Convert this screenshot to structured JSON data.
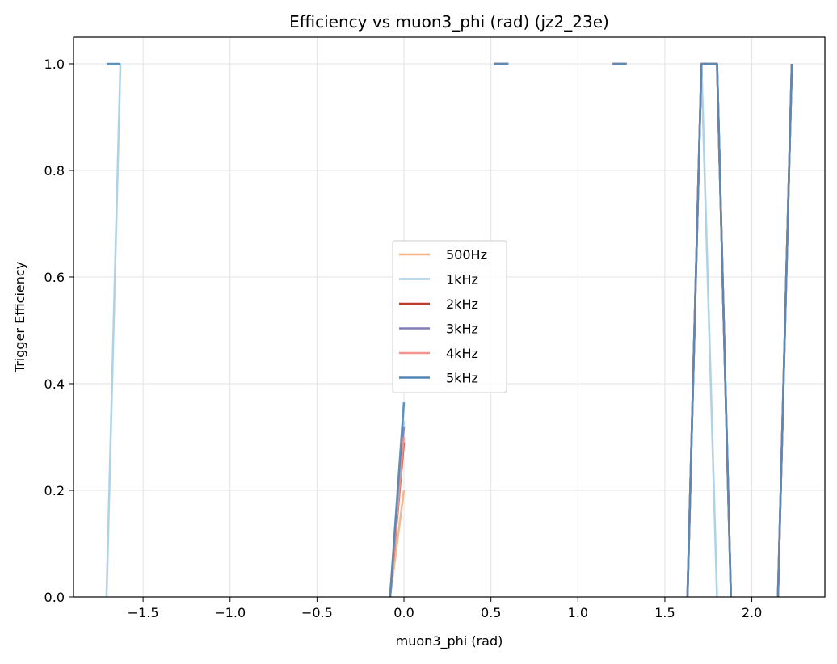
{
  "chart_data": {
    "type": "line",
    "title": "Efficiency vs muon3_phi (rad) (jz2_23e)",
    "xlabel": "muon3_phi (rad)",
    "ylabel": "Trigger Efficiency",
    "xlim": [
      -1.9,
      2.42
    ],
    "ylim": [
      0.0,
      1.05
    ],
    "xticks": [
      -1.5,
      -1.0,
      -0.5,
      0.0,
      0.5,
      1.0,
      1.5,
      2.0
    ],
    "xtick_labels": [
      "−1.5",
      "−1.0",
      "−0.5",
      "0.0",
      "0.5",
      "1.0",
      "1.5",
      "2.0"
    ],
    "yticks": [
      0.0,
      0.2,
      0.4,
      0.6,
      0.8,
      1.0
    ],
    "ytick_labels": [
      "0.0",
      "0.2",
      "0.4",
      "0.6",
      "0.8",
      "1.0"
    ],
    "grid": true,
    "legend_position": "center",
    "series": [
      {
        "name": "500Hz",
        "color": "#f4b183",
        "segments": [
          [
            [
              -0.08,
              0.0
            ],
            [
              0.0,
              0.2
            ]
          ],
          [
            [
              0.52,
              1.0
            ],
            [
              0.6,
              1.0
            ]
          ],
          [
            [
              1.2,
              1.0
            ],
            [
              1.28,
              1.0
            ]
          ],
          [
            [
              1.63,
              0.0
            ],
            [
              1.71,
              1.0
            ],
            [
              1.8,
              1.0
            ],
            [
              1.88,
              0.0
            ]
          ],
          [
            [
              2.15,
              0.0
            ],
            [
              2.23,
              1.0
            ]
          ]
        ]
      },
      {
        "name": "1kHz",
        "color": "#a6cee3",
        "segments": [
          [
            [
              -1.71,
              0.0
            ],
            [
              -1.63,
              1.0
            ]
          ],
          [
            [
              -0.08,
              0.0
            ],
            [
              0.0,
              0.33
            ]
          ],
          [
            [
              0.52,
              1.0
            ],
            [
              0.6,
              1.0
            ]
          ],
          [
            [
              1.2,
              1.0
            ],
            [
              1.28,
              1.0
            ]
          ],
          [
            [
              1.63,
              0.0
            ],
            [
              1.71,
              1.0
            ],
            [
              1.8,
              0.0
            ]
          ],
          [
            [
              2.15,
              0.0
            ],
            [
              2.23,
              1.0
            ]
          ]
        ]
      },
      {
        "name": "2kHz",
        "color": "#c0392b",
        "segments": [
          [
            [
              -0.08,
              0.0
            ],
            [
              0.0,
              0.29
            ]
          ],
          [
            [
              0.52,
              1.0
            ],
            [
              0.6,
              1.0
            ]
          ],
          [
            [
              1.2,
              1.0
            ],
            [
              1.28,
              1.0
            ]
          ],
          [
            [
              1.63,
              0.0
            ],
            [
              1.71,
              1.0
            ],
            [
              1.8,
              1.0
            ],
            [
              1.88,
              0.0
            ]
          ],
          [
            [
              2.15,
              0.0
            ],
            [
              2.23,
              1.0
            ]
          ]
        ]
      },
      {
        "name": "3kHz",
        "color": "#7f7fb5",
        "segments": [
          [
            [
              -0.08,
              0.0
            ],
            [
              0.0,
              0.32
            ]
          ],
          [
            [
              0.52,
              1.0
            ],
            [
              0.6,
              1.0
            ]
          ],
          [
            [
              1.2,
              1.0
            ],
            [
              1.28,
              1.0
            ]
          ],
          [
            [
              1.63,
              0.0
            ],
            [
              1.71,
              1.0
            ],
            [
              1.8,
              1.0
            ],
            [
              1.88,
              0.0
            ]
          ],
          [
            [
              2.15,
              0.0
            ],
            [
              2.23,
              1.0
            ]
          ]
        ]
      },
      {
        "name": "4kHz",
        "color": "#f1948a",
        "segments": [
          [
            [
              -0.08,
              0.0
            ],
            [
              0.0,
              0.3
            ]
          ],
          [
            [
              0.52,
              1.0
            ],
            [
              0.6,
              1.0
            ]
          ],
          [
            [
              1.2,
              1.0
            ],
            [
              1.28,
              1.0
            ]
          ],
          [
            [
              1.63,
              0.0
            ],
            [
              1.71,
              1.0
            ],
            [
              1.8,
              1.0
            ],
            [
              1.88,
              0.0
            ]
          ],
          [
            [
              2.15,
              0.0
            ],
            [
              2.23,
              1.0
            ]
          ]
        ]
      },
      {
        "name": "5kHz",
        "color": "#4f86b5",
        "segments": [
          [
            [
              -1.71,
              1.0
            ],
            [
              -1.63,
              1.0
            ]
          ],
          [
            [
              -0.08,
              0.0
            ],
            [
              0.0,
              0.365
            ]
          ],
          [
            [
              0.52,
              1.0
            ],
            [
              0.6,
              1.0
            ]
          ],
          [
            [
              1.2,
              1.0
            ],
            [
              1.28,
              1.0
            ]
          ],
          [
            [
              1.63,
              0.0
            ],
            [
              1.71,
              1.0
            ],
            [
              1.8,
              1.0
            ],
            [
              1.88,
              0.0
            ]
          ],
          [
            [
              2.15,
              0.0
            ],
            [
              2.23,
              1.0
            ]
          ]
        ]
      }
    ]
  }
}
